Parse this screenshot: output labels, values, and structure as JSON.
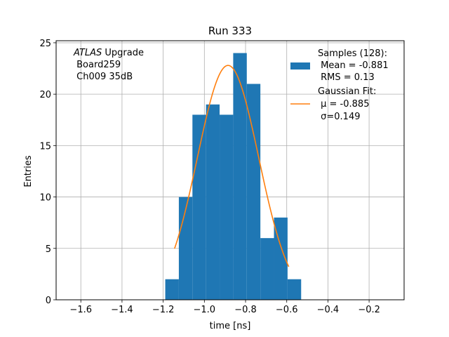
{
  "chart_data": {
    "type": "bar",
    "title": "Run 333",
    "xlabel": "time [ns]",
    "ylabel": "Entries",
    "xlim": [
      -1.72,
      -0.03
    ],
    "ylim": [
      0,
      25.2
    ],
    "grid": true,
    "xticks": [
      -1.6,
      -1.4,
      -1.2,
      -1.0,
      -0.8,
      -0.6,
      -0.4,
      -0.2
    ],
    "xtick_labels": [
      "−1.6",
      "−1.4",
      "−1.2",
      "−1.0",
      "−0.8",
      "−0.6",
      "−0.4",
      "−0.2"
    ],
    "yticks": [
      0,
      5,
      10,
      15,
      20,
      25
    ],
    "ytick_labels": [
      "0",
      "5",
      "10",
      "15",
      "20",
      "25"
    ],
    "histogram": {
      "bin_width": 0.066,
      "bin_left_edges": [
        -1.19,
        -1.124,
        -1.058,
        -0.992,
        -0.926,
        -0.86,
        -0.794,
        -0.728,
        -0.662,
        -0.596
      ],
      "counts": [
        2,
        10,
        18,
        19,
        18,
        24,
        21,
        6,
        8,
        2
      ],
      "color": "#1f77b4"
    },
    "gaussian_fit": {
      "mu": -0.885,
      "sigma": 0.149,
      "amplitude": 22.8,
      "x_range": [
        -1.145,
        -0.59
      ],
      "color": "#ff7f0e"
    },
    "annotation": {
      "italic_part": "ATLAS",
      "line1_rest": " Upgrade",
      "line2": " Board259",
      "line3": " Ch009 35dB"
    },
    "legend": {
      "placement": "top-right",
      "samples": {
        "line1": "Samples (128):",
        "line2": " Mean = -0.881",
        "line3": " RMS = 0.13"
      },
      "fit": {
        "line1": "Gaussian Fit:",
        "mu_label": " μ = -0.885",
        "sigma_label": " σ=0.149"
      }
    }
  }
}
